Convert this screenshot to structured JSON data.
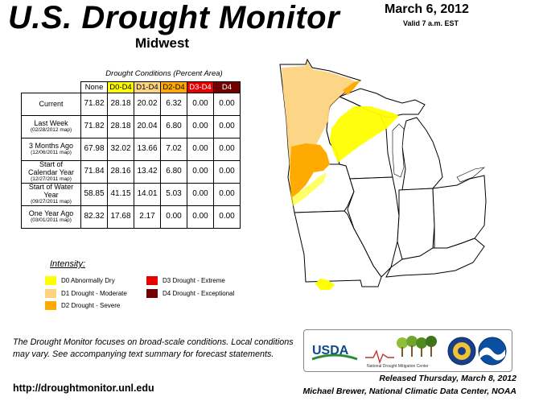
{
  "header": {
    "title": "U.S. Drought Monitor",
    "region": "Midwest",
    "date": "March 6, 2012",
    "valid": "Valid 7 a.m. EST"
  },
  "table": {
    "caption": "Drought Conditions (Percent Area)",
    "columns": [
      {
        "label": "None",
        "color": "#ffffff"
      },
      {
        "label": "D0-D4",
        "color": "#ffff00"
      },
      {
        "label": "D1-D4",
        "color": "#fcd37f"
      },
      {
        "label": "D2-D4",
        "color": "#ffaa00"
      },
      {
        "label": "D3-D4",
        "color": "#e60000"
      },
      {
        "label": "D4",
        "color": "#730000"
      }
    ],
    "rows": [
      {
        "label": "Current",
        "sub": "",
        "values": [
          "71.82",
          "28.18",
          "20.02",
          "6.32",
          "0.00",
          "0.00"
        ]
      },
      {
        "label": "Last Week",
        "sub": "(02/28/2012 map)",
        "values": [
          "71.82",
          "28.18",
          "20.04",
          "6.80",
          "0.00",
          "0.00"
        ]
      },
      {
        "label": "3 Months Ago",
        "sub": "(12/06/2011 map)",
        "values": [
          "67.98",
          "32.02",
          "13.66",
          "7.02",
          "0.00",
          "0.00"
        ]
      },
      {
        "label": "Start of Calendar Year",
        "sub": "(12/27/2011 map)",
        "values": [
          "71.84",
          "28.16",
          "13.42",
          "6.80",
          "0.00",
          "0.00"
        ]
      },
      {
        "label": "Start of Water Year",
        "sub": "(09/27/2011 map)",
        "values": [
          "58.85",
          "41.15",
          "14.01",
          "5.03",
          "0.00",
          "0.00"
        ]
      },
      {
        "label": "One Year Ago",
        "sub": "(03/01/2011 map)",
        "values": [
          "82.32",
          "17.68",
          "2.17",
          "0.00",
          "0.00",
          "0.00"
        ]
      }
    ]
  },
  "legend": {
    "title": "Intensity:",
    "items": [
      {
        "label": "D0 Abnormally Dry",
        "color": "#ffff00"
      },
      {
        "label": "D1 Drought - Moderate",
        "color": "#fcd37f"
      },
      {
        "label": "D2 Drought - Severe",
        "color": "#ffaa00"
      },
      {
        "label": "D3 Drought - Extreme",
        "color": "#e60000"
      },
      {
        "label": "D4 Drought - Exceptional",
        "color": "#730000"
      }
    ]
  },
  "footer": {
    "note": "The Drought Monitor focuses on broad-scale conditions. Local conditions may vary. See accompanying text summary for forecast statements.",
    "url": "http://droughtmonitor.unl.edu",
    "released": "Released Thursday, March 8, 2012",
    "author": "Michael Brewer, National Climatic Data Center, NOAA"
  },
  "logos": {
    "usda": "USDA",
    "ndmc": "National Drought Mitigation Center",
    "items": [
      "usda-logo",
      "ndmc-logo",
      "commerce-seal",
      "noaa-logo"
    ]
  }
}
